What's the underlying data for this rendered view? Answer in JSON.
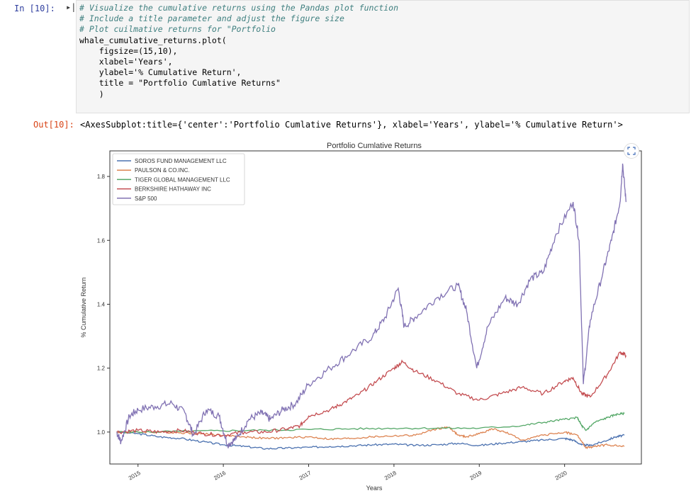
{
  "cell": {
    "in_prompt": "In [10]:",
    "out_prompt": "Out[10]:",
    "code_lines": [
      "# Visualize the cumulative returns using the Pandas plot function",
      "# Include a title parameter and adjust the figure size",
      "# Plot cuilmative returns for \"Portfolio",
      "whale_cumulative_returns.plot(",
      "    figsize=(15,10),",
      "    xlabel='Years',",
      "    ylabel='% Cumulative Return',",
      "    title = \"Portfolio Cumlative Returns\"",
      "    )"
    ],
    "output_text": "<AxesSubplot:title={'center':'Portfolio Cumlative Returns'}, xlabel='Years', ylabel='% Cumulative Return'>"
  },
  "chart_data": {
    "type": "line",
    "title": "Portfolio Cumlative Returns",
    "xlabel": "Years",
    "ylabel": "% Cumulative Return",
    "xlim": [
      2014.67,
      2020.9
    ],
    "ylim": [
      0.9,
      1.88
    ],
    "x_ticks": [
      "2015",
      "2016",
      "2017",
      "2018",
      "2019",
      "2020"
    ],
    "y_ticks": [
      "1.0",
      "1.2",
      "1.4",
      "1.6",
      "1.8"
    ],
    "legend_position": "top-left",
    "series": [
      {
        "name": "SOROS FUND MANAGEMENT LLC",
        "color": "#4c72b0",
        "points": [
          [
            2014.75,
            1.0
          ],
          [
            2015.0,
            0.995
          ],
          [
            2015.25,
            0.985
          ],
          [
            2015.5,
            0.98
          ],
          [
            2015.75,
            0.97
          ],
          [
            2016.0,
            0.96
          ],
          [
            2016.25,
            0.955
          ],
          [
            2016.5,
            0.948
          ],
          [
            2016.75,
            0.95
          ],
          [
            2017.0,
            0.952
          ],
          [
            2017.25,
            0.955
          ],
          [
            2017.5,
            0.957
          ],
          [
            2017.75,
            0.96
          ],
          [
            2018.0,
            0.962
          ],
          [
            2018.25,
            0.958
          ],
          [
            2018.5,
            0.96
          ],
          [
            2018.75,
            0.965
          ],
          [
            2019.0,
            0.958
          ],
          [
            2019.25,
            0.965
          ],
          [
            2019.5,
            0.97
          ],
          [
            2019.75,
            0.975
          ],
          [
            2020.0,
            0.98
          ],
          [
            2020.1,
            0.975
          ],
          [
            2020.2,
            0.96
          ],
          [
            2020.3,
            0.958
          ],
          [
            2020.45,
            0.97
          ],
          [
            2020.6,
            0.985
          ],
          [
            2020.7,
            0.99
          ]
        ]
      },
      {
        "name": "PAULSON & CO.INC.",
        "color": "#dd8452",
        "points": [
          [
            2014.75,
            1.0
          ],
          [
            2015.0,
            1.0
          ],
          [
            2015.25,
            1.0
          ],
          [
            2015.5,
            0.998
          ],
          [
            2015.75,
            0.995
          ],
          [
            2016.0,
            0.99
          ],
          [
            2016.25,
            0.985
          ],
          [
            2016.5,
            0.98
          ],
          [
            2016.75,
            0.982
          ],
          [
            2017.0,
            0.985
          ],
          [
            2017.25,
            0.978
          ],
          [
            2017.5,
            0.98
          ],
          [
            2017.75,
            0.985
          ],
          [
            2018.0,
            0.988
          ],
          [
            2018.25,
            0.99
          ],
          [
            2018.5,
            1.01
          ],
          [
            2018.65,
            1.015
          ],
          [
            2018.75,
            0.99
          ],
          [
            2018.85,
            0.985
          ],
          [
            2019.0,
            0.995
          ],
          [
            2019.15,
            1.01
          ],
          [
            2019.3,
            1.0
          ],
          [
            2019.5,
            0.975
          ],
          [
            2019.75,
            0.99
          ],
          [
            2020.0,
            1.0
          ],
          [
            2020.15,
            0.99
          ],
          [
            2020.25,
            0.95
          ],
          [
            2020.35,
            0.955
          ],
          [
            2020.5,
            0.96
          ],
          [
            2020.7,
            0.955
          ]
        ]
      },
      {
        "name": "TIGER GLOBAL MANAGEMENT LLC",
        "color": "#55a868",
        "points": [
          [
            2014.75,
            1.0
          ],
          [
            2015.0,
            1.0
          ],
          [
            2015.5,
            1.002
          ],
          [
            2016.0,
            1.004
          ],
          [
            2016.5,
            1.006
          ],
          [
            2017.0,
            1.008
          ],
          [
            2017.5,
            1.01
          ],
          [
            2018.0,
            1.012
          ],
          [
            2018.5,
            1.012
          ],
          [
            2019.0,
            1.012
          ],
          [
            2019.5,
            1.02
          ],
          [
            2019.75,
            1.03
          ],
          [
            2020.0,
            1.04
          ],
          [
            2020.15,
            1.045
          ],
          [
            2020.2,
            1.02
          ],
          [
            2020.25,
            1.005
          ],
          [
            2020.35,
            1.03
          ],
          [
            2020.5,
            1.045
          ],
          [
            2020.6,
            1.055
          ],
          [
            2020.7,
            1.058
          ]
        ]
      },
      {
        "name": "BERKSHIRE HATHAWAY INC",
        "color": "#c44e52",
        "points": [
          [
            2014.75,
            1.0
          ],
          [
            2015.0,
            1.005
          ],
          [
            2015.25,
            1.0
          ],
          [
            2015.5,
            1.005
          ],
          [
            2015.75,
            0.995
          ],
          [
            2016.0,
            0.99
          ],
          [
            2016.25,
            1.0
          ],
          [
            2016.5,
            1.0
          ],
          [
            2016.75,
            1.01
          ],
          [
            2016.9,
            1.02
          ],
          [
            2017.0,
            1.05
          ],
          [
            2017.25,
            1.07
          ],
          [
            2017.4,
            1.09
          ],
          [
            2017.6,
            1.12
          ],
          [
            2017.8,
            1.16
          ],
          [
            2018.0,
            1.2
          ],
          [
            2018.1,
            1.22
          ],
          [
            2018.25,
            1.19
          ],
          [
            2018.5,
            1.16
          ],
          [
            2018.75,
            1.12
          ],
          [
            2019.0,
            1.1
          ],
          [
            2019.25,
            1.12
          ],
          [
            2019.5,
            1.14
          ],
          [
            2019.75,
            1.12
          ],
          [
            2020.0,
            1.16
          ],
          [
            2020.1,
            1.17
          ],
          [
            2020.2,
            1.12
          ],
          [
            2020.3,
            1.11
          ],
          [
            2020.5,
            1.18
          ],
          [
            2020.65,
            1.25
          ],
          [
            2020.72,
            1.24
          ]
        ]
      },
      {
        "name": "S&P 500",
        "color": "#8172b3",
        "points": [
          [
            2014.75,
            1.0
          ],
          [
            2014.8,
            0.97
          ],
          [
            2014.9,
            1.05
          ],
          [
            2015.0,
            1.07
          ],
          [
            2015.2,
            1.08
          ],
          [
            2015.4,
            1.09
          ],
          [
            2015.55,
            1.06
          ],
          [
            2015.65,
            0.99
          ],
          [
            2015.8,
            1.07
          ],
          [
            2015.95,
            1.05
          ],
          [
            2016.05,
            0.96
          ],
          [
            2016.15,
            0.98
          ],
          [
            2016.3,
            1.04
          ],
          [
            2016.45,
            1.06
          ],
          [
            2016.55,
            1.04
          ],
          [
            2016.7,
            1.07
          ],
          [
            2016.85,
            1.09
          ],
          [
            2017.0,
            1.15
          ],
          [
            2017.25,
            1.2
          ],
          [
            2017.5,
            1.25
          ],
          [
            2017.75,
            1.3
          ],
          [
            2017.9,
            1.36
          ],
          [
            2018.05,
            1.45
          ],
          [
            2018.12,
            1.33
          ],
          [
            2018.25,
            1.36
          ],
          [
            2018.5,
            1.42
          ],
          [
            2018.75,
            1.46
          ],
          [
            2018.85,
            1.38
          ],
          [
            2018.97,
            1.2
          ],
          [
            2019.1,
            1.33
          ],
          [
            2019.3,
            1.42
          ],
          [
            2019.45,
            1.4
          ],
          [
            2019.6,
            1.48
          ],
          [
            2019.75,
            1.5
          ],
          [
            2019.9,
            1.62
          ],
          [
            2020.1,
            1.72
          ],
          [
            2020.17,
            1.6
          ],
          [
            2020.22,
            1.15
          ],
          [
            2020.3,
            1.35
          ],
          [
            2020.45,
            1.5
          ],
          [
            2020.55,
            1.6
          ],
          [
            2020.65,
            1.72
          ],
          [
            2020.68,
            1.84
          ],
          [
            2020.72,
            1.72
          ]
        ]
      }
    ]
  },
  "icons": {
    "expand": "expand-icon",
    "run": "run-marker-icon"
  }
}
